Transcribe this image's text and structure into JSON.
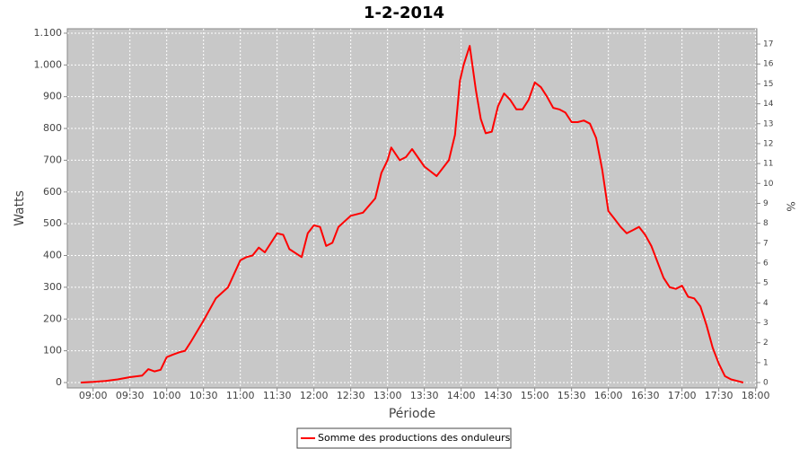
{
  "chart_data": {
    "type": "line",
    "title": "1-2-2014",
    "x_label": "Période",
    "y_label": "Watts",
    "y2_label": "%",
    "x": [
      "08:50",
      "09:00",
      "09:10",
      "09:20",
      "09:30",
      "09:40",
      "09:45",
      "09:50",
      "09:55",
      "10:00",
      "10:05",
      "10:10",
      "10:15",
      "10:20",
      "10:30",
      "10:40",
      "10:50",
      "11:00",
      "11:05",
      "11:10",
      "11:15",
      "11:20",
      "11:30",
      "11:35",
      "11:40",
      "11:50",
      "11:55",
      "12:00",
      "12:05",
      "12:10",
      "12:15",
      "12:20",
      "12:30",
      "12:40",
      "12:50",
      "12:55",
      "13:00",
      "13:03",
      "13:10",
      "13:15",
      "13:20",
      "13:30",
      "13:40",
      "13:50",
      "13:55",
      "13:59",
      "14:02",
      "14:07",
      "14:12",
      "14:16",
      "14:20",
      "14:25",
      "14:30",
      "14:35",
      "14:40",
      "14:45",
      "14:50",
      "14:55",
      "15:00",
      "15:05",
      "15:10",
      "15:15",
      "15:20",
      "15:25",
      "15:30",
      "15:35",
      "15:40",
      "15:45",
      "15:50",
      "15:55",
      "16:00",
      "16:05",
      "16:10",
      "16:15",
      "16:20",
      "16:25",
      "16:30",
      "16:35",
      "16:40",
      "16:45",
      "16:50",
      "16:55",
      "17:00",
      "17:05",
      "17:10",
      "17:15",
      "17:20",
      "17:25",
      "17:30",
      "17:35",
      "17:40",
      "17:45",
      "17:50"
    ],
    "series": [
      {
        "name": "Somme des productions des onduleurs",
        "color": "#ff0000",
        "values": [
          0,
          2,
          5,
          10,
          17,
          22,
          42,
          35,
          40,
          80,
          88,
          95,
          100,
          130,
          195,
          265,
          300,
          385,
          395,
          400,
          425,
          410,
          470,
          465,
          420,
          395,
          470,
          495,
          490,
          430,
          440,
          490,
          525,
          535,
          580,
          660,
          700,
          740,
          700,
          710,
          735,
          680,
          650,
          700,
          780,
          950,
          1000,
          1060,
          920,
          830,
          785,
          790,
          870,
          910,
          890,
          860,
          860,
          890,
          945,
          930,
          900,
          865,
          860,
          850,
          820,
          820,
          825,
          815,
          770,
          670,
          540,
          515,
          490,
          470,
          480,
          490,
          465,
          430,
          380,
          330,
          300,
          295,
          305,
          270,
          265,
          240,
          180,
          110,
          60,
          20,
          10,
          5,
          0
        ]
      }
    ],
    "xlim": [
      "08:39",
      "18:01"
    ],
    "xticks": [
      "09:00",
      "09:30",
      "10:00",
      "10:30",
      "11:00",
      "11:30",
      "12:00",
      "12:30",
      "13:00",
      "13:30",
      "14:00",
      "14:30",
      "15:00",
      "15:30",
      "16:00",
      "16:30",
      "17:00",
      "17:30",
      "18:00"
    ],
    "ylim": [
      -17,
      1114
    ],
    "yticks": [
      0,
      100,
      200,
      300,
      400,
      500,
      600,
      700,
      800,
      900,
      {
        "value": 1000,
        "label": "1.000"
      },
      {
        "value": 1100,
        "label": "1.100"
      }
    ],
    "y2lim": [
      -0.27,
      17.77
    ],
    "y2ticks": [
      0,
      1,
      2,
      3,
      4,
      5,
      6,
      7,
      8,
      9,
      10,
      11,
      12,
      13,
      14,
      15,
      16,
      17
    ],
    "grid": true,
    "legend": "bottom"
  }
}
